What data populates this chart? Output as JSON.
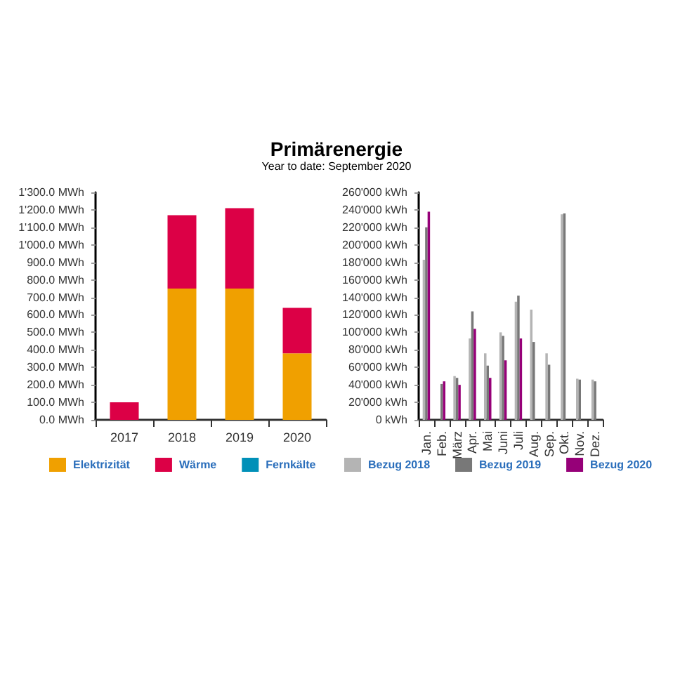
{
  "chart_data": [
    {
      "type": "bar",
      "title": "Primärenergie",
      "subtitle": "Year to date: September 2020",
      "categories": [
        "2017",
        "2018",
        "2019",
        "2020"
      ],
      "stacked": true,
      "series": [
        {
          "name": "Elektrizität",
          "color": "#f0a000",
          "values": [
            0,
            750,
            750,
            380
          ]
        },
        {
          "name": "Wärme",
          "color": "#dc0046",
          "values": [
            100,
            420,
            460,
            260
          ]
        },
        {
          "name": "Fernkälte",
          "color": "#0090b8",
          "values": [
            null,
            null,
            null,
            null
          ]
        }
      ],
      "ylim": [
        0,
        1300
      ],
      "yticks": [
        {
          "value": 0,
          "label": "0.0 MWh"
        },
        {
          "value": 100,
          "label": "100.0 MWh"
        },
        {
          "value": 200,
          "label": "200.0 MWh"
        },
        {
          "value": 300,
          "label": "300.0 MWh"
        },
        {
          "value": 400,
          "label": "400.0 MWh"
        },
        {
          "value": 500,
          "label": "500.0 MWh"
        },
        {
          "value": 600,
          "label": "600.0 MWh"
        },
        {
          "value": 700,
          "label": "700.0 MWh"
        },
        {
          "value": 800,
          "label": "800.0 MWh"
        },
        {
          "value": 900,
          "label": "900.0 MWh"
        },
        {
          "value": 1000,
          "label": "1'000.0 MWh"
        },
        {
          "value": 1100,
          "label": "1'100.0 MWh"
        },
        {
          "value": 1200,
          "label": "1'200.0 MWh"
        },
        {
          "value": 1300,
          "label": "1'300.0 MWh"
        }
      ],
      "grid": false,
      "legend": "bottom"
    },
    {
      "type": "bar",
      "categories": [
        "Jan.",
        "Feb.",
        "März",
        "Apr.",
        "Mai",
        "Juni",
        "Juli",
        "Aug.",
        "Sep.",
        "Okt.",
        "Nov.",
        "Dez."
      ],
      "series": [
        {
          "name": "Bezug 2018",
          "color": "#b4b4b4",
          "values": [
            183000,
            null,
            50000,
            93000,
            76000,
            100000,
            135000,
            126000,
            76000,
            235000,
            47000,
            46000
          ]
        },
        {
          "name": "Bezug 2019",
          "color": "#787878",
          "values": [
            220000,
            41000,
            48000,
            124000,
            62000,
            96000,
            142000,
            89000,
            63000,
            236000,
            46000,
            44000
          ]
        },
        {
          "name": "Bezug 2020",
          "color": "#960078",
          "values": [
            238000,
            44000,
            40000,
            104000,
            48000,
            68000,
            93000,
            null,
            null,
            null,
            null,
            null
          ]
        }
      ],
      "ylim": [
        0,
        260000
      ],
      "yticks": [
        {
          "value": 0,
          "label": "0 kWh"
        },
        {
          "value": 20000,
          "label": "20'000 kWh"
        },
        {
          "value": 40000,
          "label": "40'000 kWh"
        },
        {
          "value": 60000,
          "label": "60'000 kWh"
        },
        {
          "value": 80000,
          "label": "80'000 kWh"
        },
        {
          "value": 100000,
          "label": "100'000 kWh"
        },
        {
          "value": 120000,
          "label": "120'000 kWh"
        },
        {
          "value": 140000,
          "label": "140'000 kWh"
        },
        {
          "value": 160000,
          "label": "160'000 kWh"
        },
        {
          "value": 180000,
          "label": "180'000 kWh"
        },
        {
          "value": 200000,
          "label": "200'000 kWh"
        },
        {
          "value": 220000,
          "label": "220'000 kWh"
        },
        {
          "value": 240000,
          "label": "240'000 kWh"
        },
        {
          "value": 260000,
          "label": "260'000 kWh"
        }
      ],
      "grid": false,
      "legend": "bottom"
    }
  ]
}
